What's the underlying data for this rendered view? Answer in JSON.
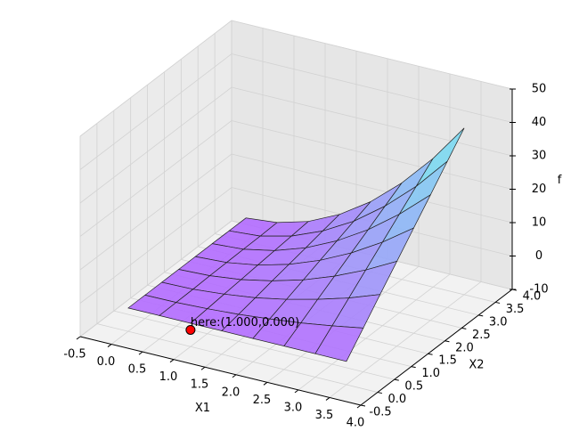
{
  "chart_data": {
    "type": "surface3d",
    "xlabel": "X1",
    "ylabel": "X2",
    "zlabel": "f",
    "x": [
      0,
      0.5,
      1,
      1.5,
      2,
      2.5,
      3,
      3.5
    ],
    "y": [
      0,
      0.5,
      1,
      1.5,
      2,
      2.5,
      3,
      3.5
    ],
    "z": [
      [
        -3,
        -3,
        -3,
        -3,
        -3,
        -3,
        -3,
        -3
      ],
      [
        -3,
        -2.9,
        -2.5,
        -1.9,
        -1,
        0.1,
        1.5,
        3.1
      ],
      [
        -3,
        -2.8,
        -2,
        -0.8,
        1,
        3.3,
        6,
        9.3
      ],
      [
        -3,
        -2.6,
        -1.5,
        0.4,
        3,
        6.4,
        10.5,
        15.4
      ],
      [
        -3,
        -2.5,
        -1,
        1.5,
        5,
        9.5,
        15,
        21.5
      ],
      [
        -3,
        -2.4,
        -0.5,
        2.6,
        7,
        12.6,
        19.5,
        27.6
      ],
      [
        -3,
        -2.3,
        0,
        3.8,
        9,
        15.8,
        24,
        33.8
      ],
      [
        -3,
        -2.1,
        0.5,
        4.9,
        11,
        18.9,
        28.5,
        39.9
      ]
    ],
    "xlim": [
      -0.5,
      4
    ],
    "ylim": [
      -0.5,
      4
    ],
    "zlim": [
      -10,
      50
    ],
    "xticks": [
      -0.5,
      {
        "value": 0,
        "label": "0.0"
      },
      0.5,
      {
        "value": 1,
        "label": "1.0"
      },
      1.5,
      {
        "value": 2,
        "label": "2.0"
      },
      2.5,
      {
        "value": 3,
        "label": "3.0"
      },
      3.5,
      {
        "value": 4,
        "label": "4.0"
      }
    ],
    "yticks": [
      -0.5,
      {
        "value": 0,
        "label": "0.0"
      },
      0.5,
      {
        "value": 1,
        "label": "1.0"
      },
      1.5,
      {
        "value": 2,
        "label": "2.0"
      },
      2.5,
      {
        "value": 3,
        "label": "3.0"
      },
      3.5,
      {
        "value": 4,
        "label": "4.0"
      }
    ],
    "zticks": [
      -10,
      0,
      10,
      20,
      30,
      40,
      50
    ],
    "colors": [
      "#b36bff",
      "#6ff2ee"
    ],
    "grid": true,
    "annotation": {
      "text": "here:(1.000,0.000)",
      "x": 1,
      "y": 0,
      "z": -5,
      "color": "#ff0000"
    }
  }
}
